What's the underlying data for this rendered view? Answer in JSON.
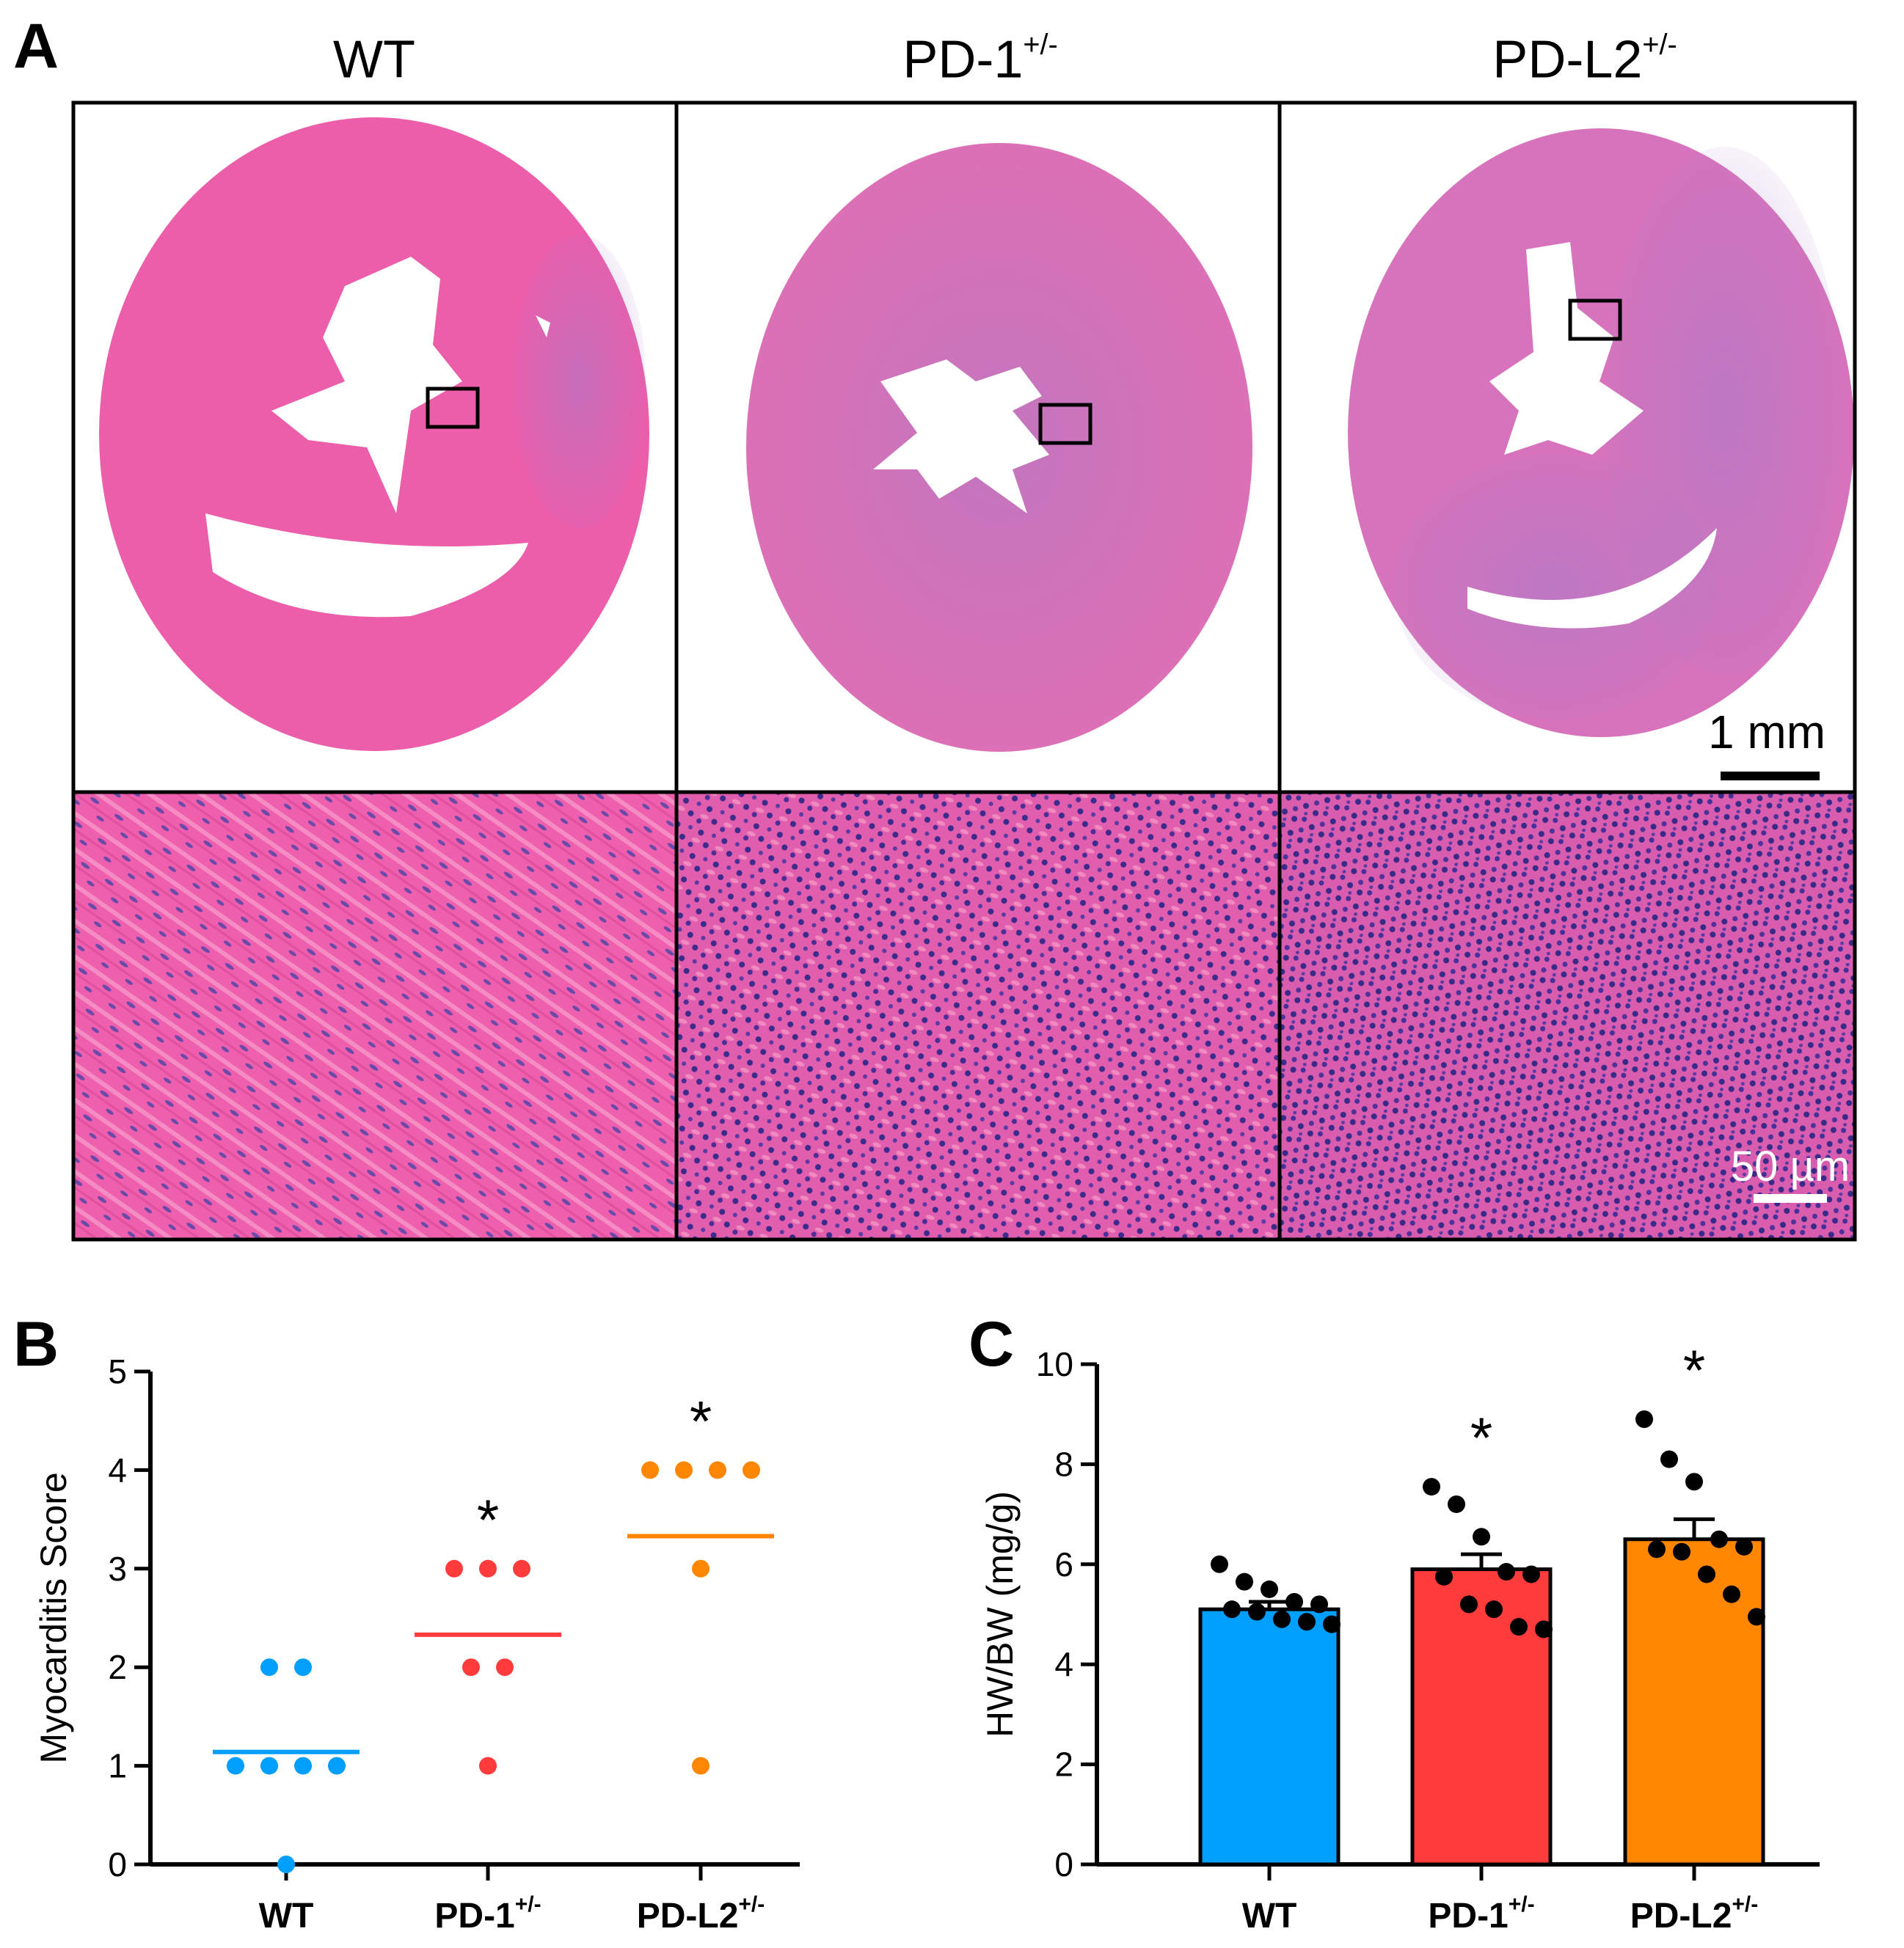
{
  "panel_a": {
    "letter": "A",
    "columns": [
      {
        "base": "WT",
        "sup": ""
      },
      {
        "base": "PD-1",
        "sup": "+/-"
      },
      {
        "base": "PD-L2",
        "sup": "+/-"
      }
    ],
    "scale_bar_top": "1 mm",
    "scale_bar_bottom": "50 µm"
  },
  "colors": {
    "wt": "#009FFD",
    "pd1": "#FF3B3B",
    "pdl2": "#FF8600",
    "tissue_pink": "#EE5FAE",
    "tissue_purple": "#A87BC6"
  },
  "chart_data": [
    {
      "type": "scatter",
      "panel": "B",
      "ylabel": "Myocarditis Score",
      "ylim": [
        0,
        5
      ],
      "yticks": [
        "0",
        "1",
        "2",
        "3",
        "4",
        "5"
      ],
      "categories": [
        {
          "base": "WT",
          "sup": ""
        },
        {
          "base": "PD-1",
          "sup": "+/-"
        },
        {
          "base": "PD-L2",
          "sup": "+/-"
        }
      ],
      "series": [
        {
          "name": "WT",
          "points": [
            2,
            2,
            1,
            1,
            1,
            1,
            0
          ],
          "mean": 1.14,
          "significance": ""
        },
        {
          "name": "PD-1+/-",
          "points": [
            3,
            3,
            3,
            2,
            2,
            1
          ],
          "mean": 2.33,
          "significance": "*"
        },
        {
          "name": "PD-L2+/-",
          "points": [
            4,
            4,
            4,
            4,
            3,
            1
          ],
          "mean": 3.33,
          "significance": "*"
        }
      ]
    },
    {
      "type": "bar",
      "panel": "C",
      "ylabel": "HW/BW (mg/g)",
      "ylim": [
        0,
        10
      ],
      "yticks": [
        "0",
        "2",
        "4",
        "6",
        "8",
        "10"
      ],
      "categories": [
        {
          "base": "WT",
          "sup": ""
        },
        {
          "base": "PD-1",
          "sup": "+/-"
        },
        {
          "base": "PD-L2",
          "sup": "+/-"
        }
      ],
      "values": [
        5.1,
        5.9,
        6.5
      ],
      "sem": [
        0.15,
        0.3,
        0.4
      ],
      "significance": [
        "",
        "*",
        "*"
      ],
      "points": [
        [
          6.0,
          5.65,
          5.5,
          5.25,
          5.2,
          5.1,
          5.05,
          4.9,
          4.85,
          4.8
        ],
        [
          7.55,
          7.2,
          6.55,
          5.85,
          5.8,
          5.75,
          5.2,
          5.1,
          4.75,
          4.7
        ],
        [
          8.9,
          8.1,
          7.65,
          6.5,
          6.35,
          6.3,
          6.25,
          5.8,
          5.4,
          4.95
        ]
      ]
    }
  ]
}
